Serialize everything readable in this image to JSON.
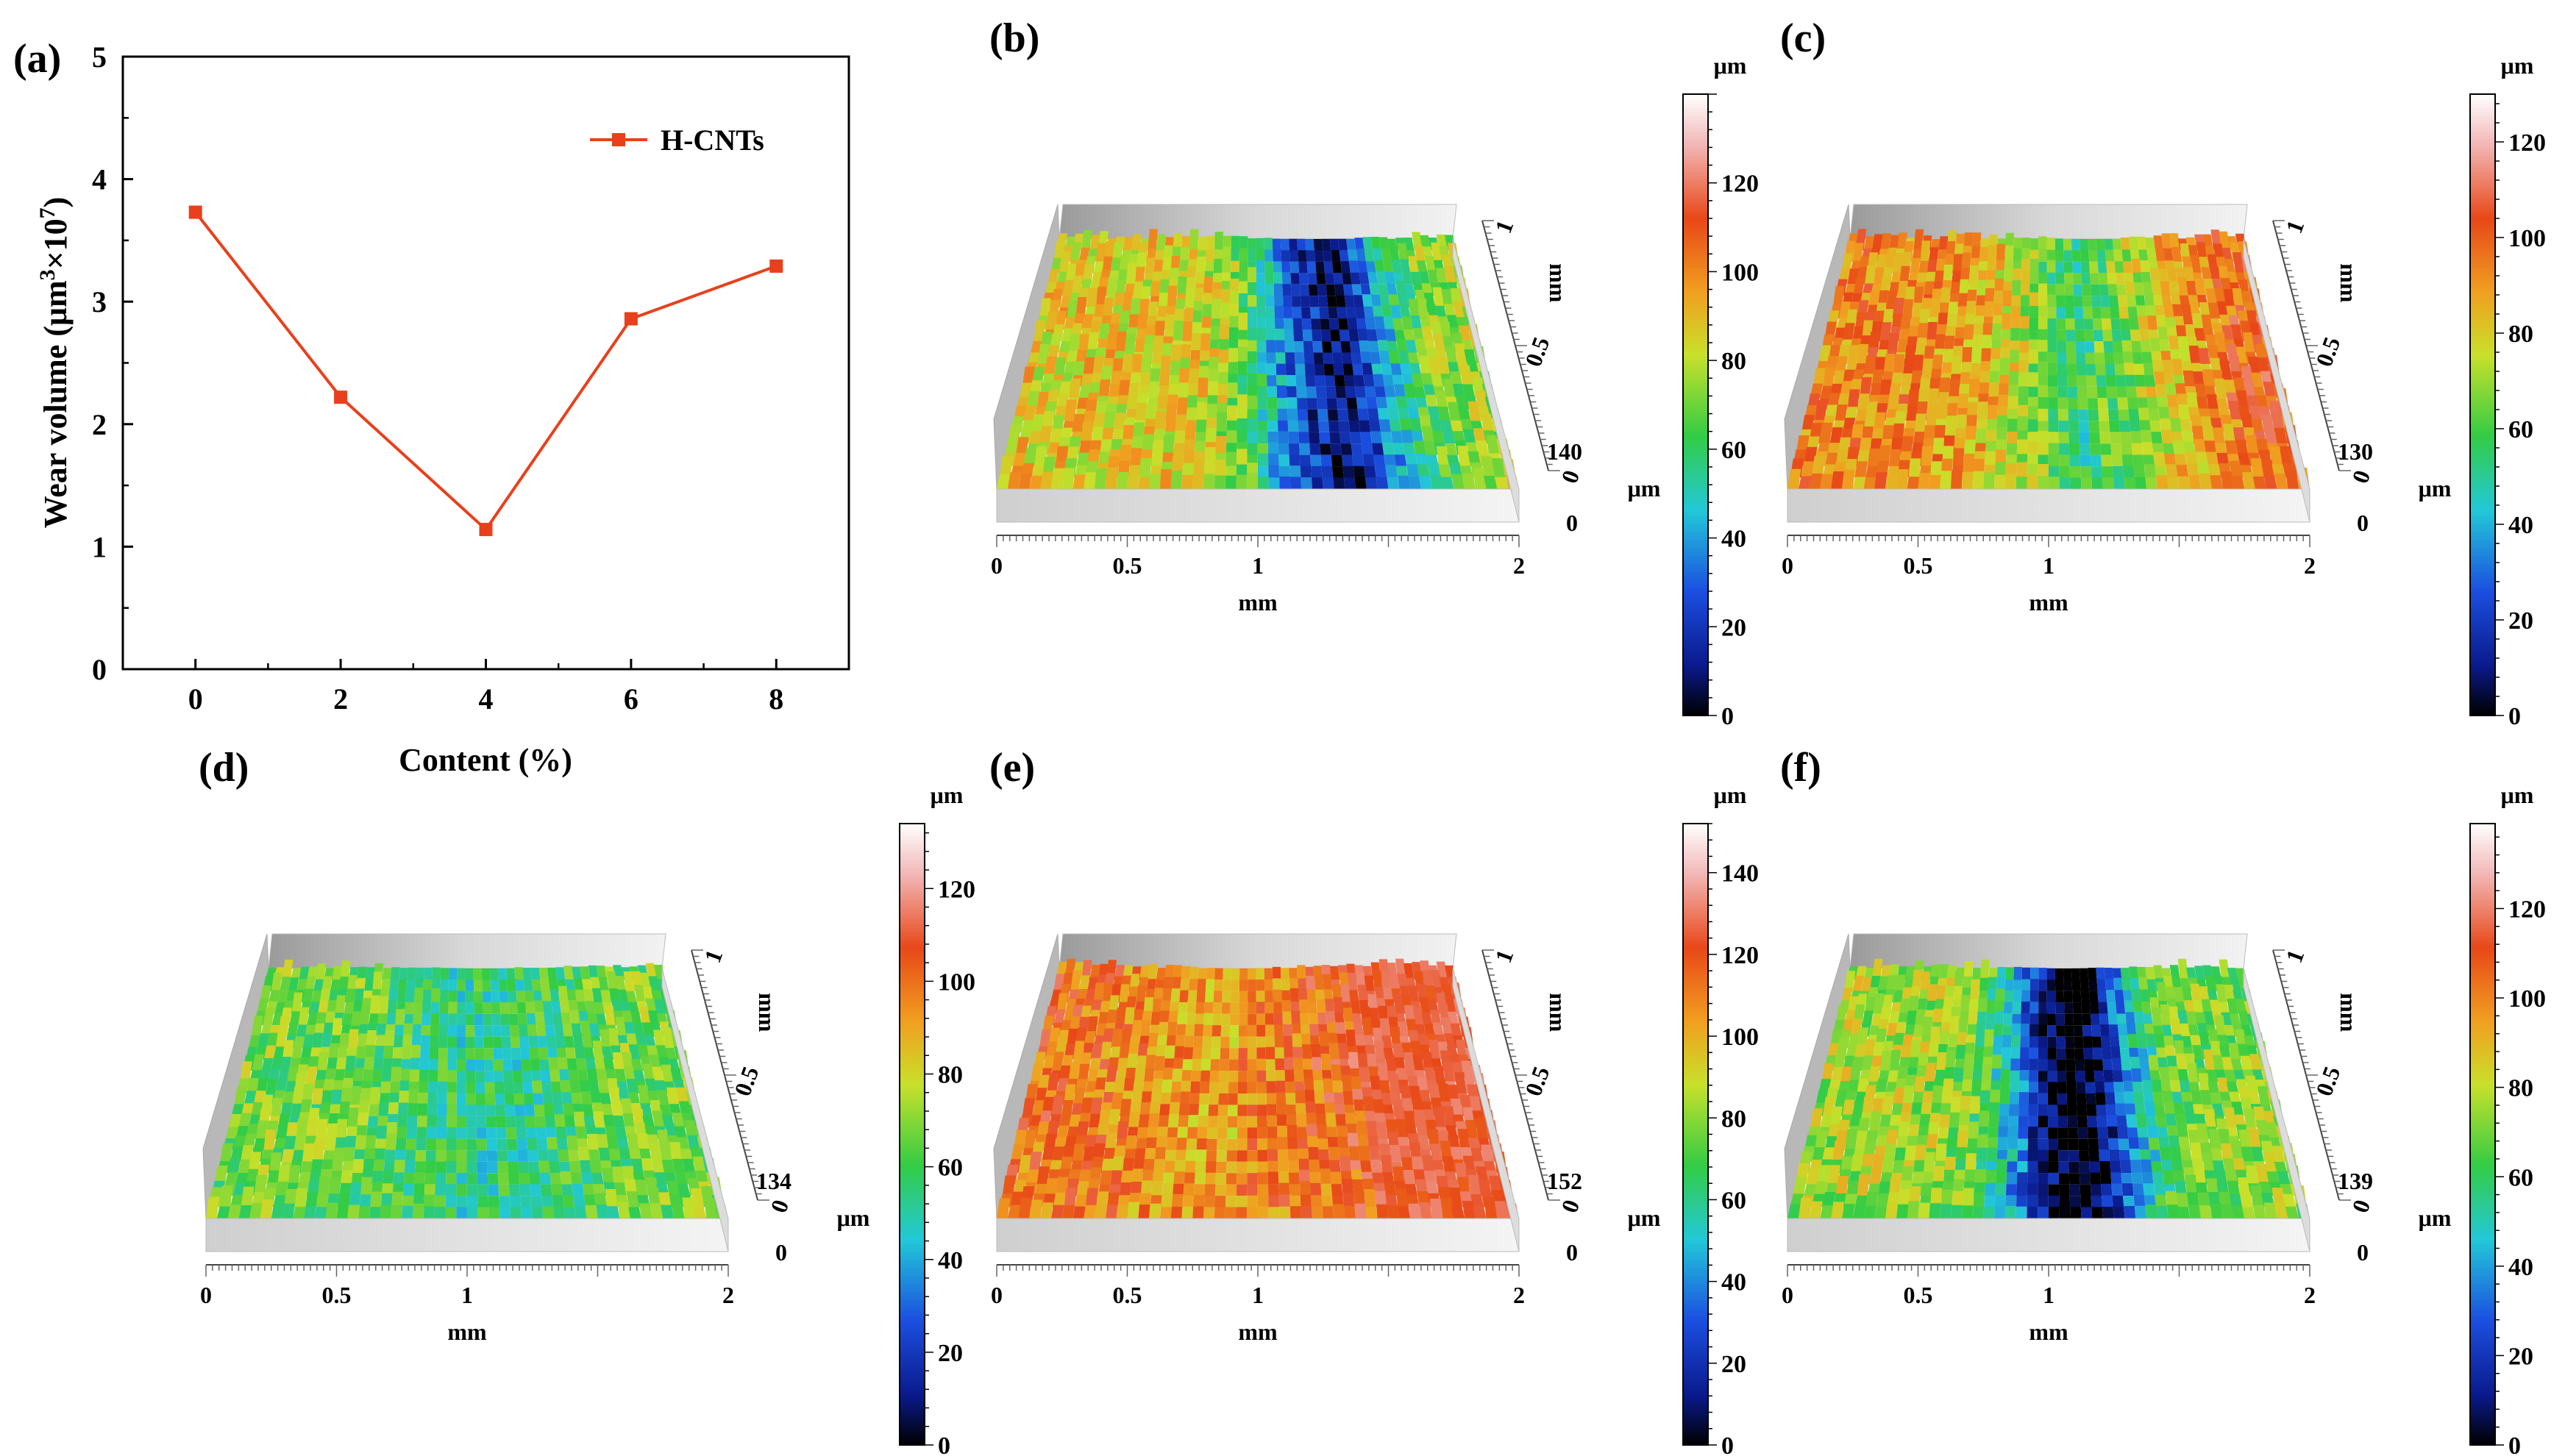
{
  "colors": {
    "line": "#e8401c",
    "surface_ramp": [
      "#000000",
      "#0a1a8c",
      "#1b4fe0",
      "#22c8d8",
      "#33cc44",
      "#c8e02a",
      "#f0a020",
      "#e84818",
      "#f2b8b8",
      "#ffffff"
    ]
  },
  "chart_data": [
    {
      "panel": "(a)",
      "type": "line",
      "title": "",
      "xlabel": "Content (%)",
      "ylabel_parts": {
        "main": "Wear volume (μm",
        "sup1": "3",
        "mid": "×10",
        "sup2": "7",
        "end": ")"
      },
      "x": [
        0,
        2,
        4,
        6,
        8
      ],
      "xticks": [
        "0",
        "2",
        "4",
        "6",
        "8"
      ],
      "yticks": [
        "0",
        "1",
        "2",
        "3",
        "4",
        "5"
      ],
      "xlim": [
        -1,
        9
      ],
      "ylim": [
        0,
        5
      ],
      "series": [
        {
          "name": "H-CNTs",
          "values": [
            3.73,
            2.22,
            1.14,
            2.86,
            3.29
          ]
        }
      ],
      "legend": "top-right",
      "grid": false
    },
    {
      "panel": "(b)",
      "type": "heatmap",
      "view": "3D surface profile",
      "x_ticks": [
        "0",
        "0.5",
        "1",
        "2"
      ],
      "x_label": "mm",
      "y_ticks": [
        "1",
        "0.5",
        "0"
      ],
      "y_label": "mm",
      "z_max_label": "140",
      "z_unit": "μm",
      "colorbar_ticks": [
        "0",
        "20",
        "40",
        "60",
        "80",
        "100",
        "120"
      ],
      "colorbar_max": 140,
      "colorbar_unit": "μm",
      "groove": "deep",
      "groove_center": 0.65,
      "sides": [
        0.62,
        0.55
      ],
      "side_tint": [
        "#e05a20",
        "#b8e030"
      ]
    },
    {
      "panel": "(c)",
      "type": "heatmap",
      "view": "3D surface profile",
      "x_ticks": [
        "0",
        "0.5",
        "1",
        "2"
      ],
      "x_label": "mm",
      "y_ticks": [
        "1",
        "0.5",
        "0"
      ],
      "y_label": "mm",
      "z_max_label": "130",
      "z_unit": "μm",
      "colorbar_ticks": [
        "0",
        "20",
        "40",
        "60",
        "80",
        "100",
        "120"
      ],
      "colorbar_max": 130,
      "colorbar_unit": "μm",
      "groove": "shallow",
      "groove_center": 0.6,
      "sides": [
        0.72,
        0.78
      ],
      "side_tint": [
        "#e85818",
        "#e85818"
      ]
    },
    {
      "panel": "(d)",
      "type": "heatmap",
      "view": "3D surface profile",
      "x_ticks": [
        "0",
        "0.5",
        "1",
        "2"
      ],
      "x_label": "mm",
      "y_ticks": [
        "1",
        "0.5",
        "0"
      ],
      "y_label": "mm",
      "z_max_label": "134",
      "z_unit": "μm",
      "colorbar_ticks": [
        "0",
        "20",
        "40",
        "60",
        "80",
        "100",
        "120"
      ],
      "colorbar_max": 134,
      "colorbar_unit": "μm",
      "groove": "faint",
      "groove_center": 0.55,
      "sides": [
        0.5,
        0.5
      ],
      "side_tint": [
        "#44cc44",
        "#44cc44"
      ]
    },
    {
      "panel": "(e)",
      "type": "heatmap",
      "view": "3D surface profile",
      "x_ticks": [
        "0",
        "0.5",
        "1",
        "2"
      ],
      "x_label": "mm",
      "y_ticks": [
        "1",
        "0.5",
        "0"
      ],
      "y_label": "mm",
      "z_max_label": "152",
      "z_unit": "μm",
      "colorbar_ticks": [
        "0",
        "20",
        "40",
        "60",
        "80",
        "100",
        "120",
        "140"
      ],
      "colorbar_max": 152,
      "colorbar_unit": "μm",
      "groove": "faint-high",
      "groove_center": 0.45,
      "sides": [
        0.75,
        0.8
      ],
      "side_tint": [
        "#f0a0a0",
        "#e85020"
      ]
    },
    {
      "panel": "(f)",
      "type": "heatmap",
      "view": "3D surface profile",
      "x_ticks": [
        "0",
        "0.5",
        "1",
        "2"
      ],
      "x_label": "mm",
      "y_ticks": [
        "1",
        "0.5",
        "0"
      ],
      "y_label": "mm",
      "z_max_label": "139",
      "z_unit": "μm",
      "colorbar_ticks": [
        "0",
        "20",
        "40",
        "60",
        "80",
        "100",
        "120"
      ],
      "colorbar_max": 139,
      "colorbar_unit": "μm",
      "groove": "deepest",
      "groove_center": 0.55,
      "sides": [
        0.55,
        0.52
      ],
      "side_tint": [
        "#e05a20",
        "#c8e030"
      ]
    }
  ]
}
